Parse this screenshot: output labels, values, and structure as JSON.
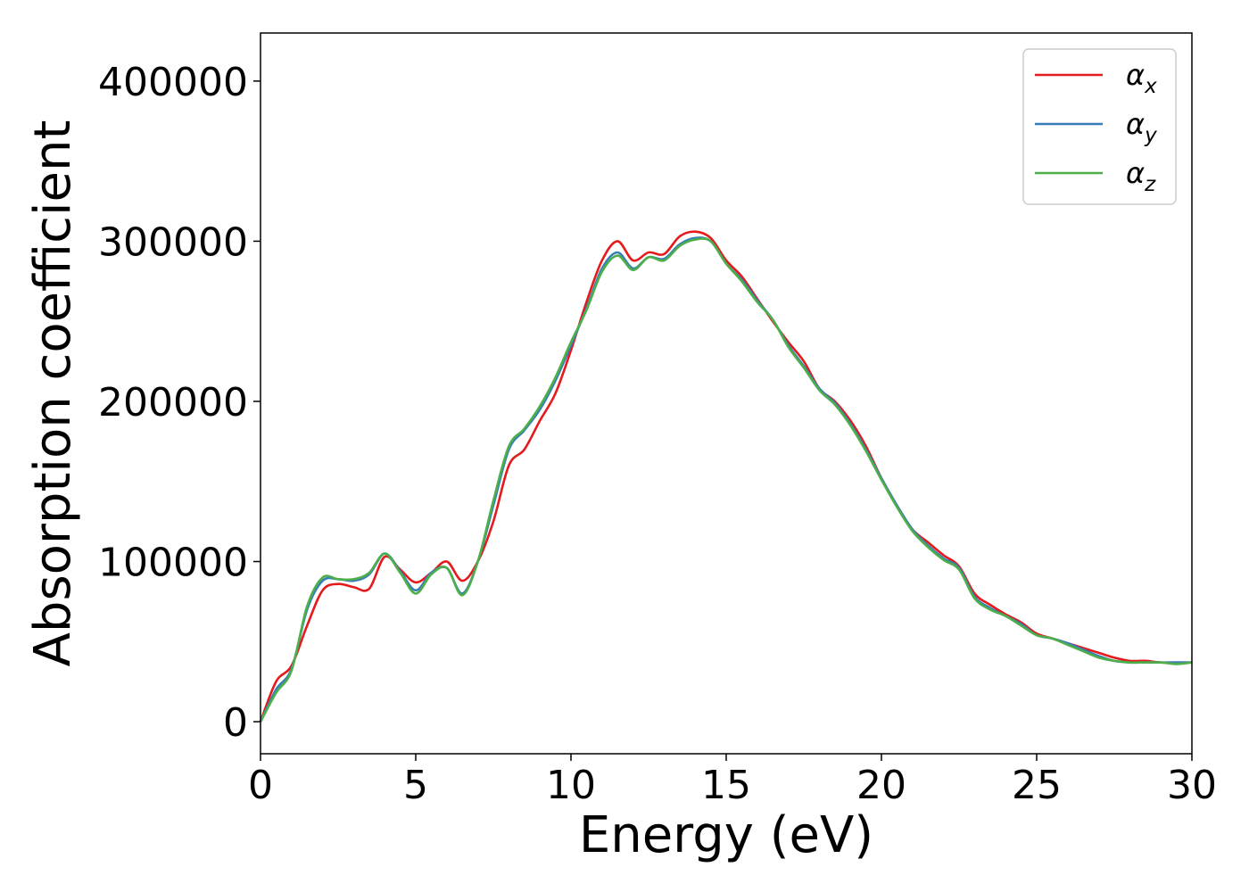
{
  "chart_data": {
    "type": "line",
    "title": "",
    "xlabel": "Energy (eV)",
    "ylabel": "Absorption coefficient",
    "xlim": [
      0,
      30
    ],
    "ylim": [
      -20000,
      430000
    ],
    "xticks": [
      0,
      5,
      10,
      15,
      20,
      25,
      30
    ],
    "yticks": [
      0,
      100000,
      200000,
      300000,
      400000
    ],
    "grid": false,
    "legend_position": "top-right",
    "series": [
      {
        "name": "α",
        "subscript": "x",
        "color": "#e41a1c",
        "x": [
          0,
          0.5,
          1,
          1.5,
          2,
          2.5,
          3,
          3.5,
          4,
          4.5,
          5,
          5.5,
          6,
          6.5,
          7,
          7.5,
          8,
          8.5,
          9,
          9.5,
          10,
          10.5,
          11,
          11.5,
          12,
          12.5,
          13,
          13.5,
          14,
          14.5,
          15,
          15.5,
          16,
          16.5,
          17,
          17.5,
          18,
          18.5,
          19,
          19.5,
          20,
          20.5,
          21,
          21.5,
          22,
          22.5,
          23,
          23.5,
          24,
          24.5,
          25,
          25.5,
          26,
          26.5,
          27,
          27.5,
          28,
          28.5,
          29,
          29.5,
          30
        ],
        "y": [
          0,
          25000,
          35000,
          60000,
          82000,
          86000,
          84000,
          83000,
          103000,
          95000,
          87000,
          93000,
          100000,
          88000,
          100000,
          125000,
          160000,
          170000,
          188000,
          205000,
          232000,
          262000,
          288000,
          300000,
          288000,
          293000,
          292000,
          303000,
          306000,
          302000,
          288000,
          278000,
          264000,
          250000,
          237000,
          225000,
          208000,
          200000,
          188000,
          172000,
          152000,
          135000,
          120000,
          112000,
          104000,
          97000,
          80000,
          73000,
          67000,
          62000,
          55000,
          52000,
          49000,
          46000,
          43000,
          40000,
          38000,
          38000,
          37000,
          37000,
          37000
        ]
      },
      {
        "name": "α",
        "subscript": "y",
        "color": "#377eb8",
        "x": [
          0,
          0.5,
          1,
          1.5,
          2,
          2.5,
          3,
          3.5,
          4,
          4.5,
          5,
          5.5,
          6,
          6.5,
          7,
          7.5,
          8,
          8.5,
          9,
          9.5,
          10,
          10.5,
          11,
          11.5,
          12,
          12.5,
          13,
          13.5,
          14,
          14.5,
          15,
          15.5,
          16,
          16.5,
          17,
          17.5,
          18,
          18.5,
          19,
          19.5,
          20,
          20.5,
          21,
          21.5,
          22,
          22.5,
          23,
          23.5,
          24,
          24.5,
          25,
          25.5,
          26,
          26.5,
          27,
          27.5,
          28,
          28.5,
          29,
          29.5,
          30
        ],
        "y": [
          0,
          20000,
          33000,
          70000,
          88000,
          89000,
          88000,
          92000,
          105000,
          94000,
          82000,
          93000,
          96000,
          80000,
          100000,
          135000,
          170000,
          182000,
          195000,
          213000,
          235000,
          258000,
          283000,
          293000,
          283000,
          290000,
          289000,
          298000,
          302000,
          300000,
          286000,
          276000,
          263000,
          251000,
          235000,
          222000,
          208000,
          199000,
          186000,
          170000,
          152000,
          135000,
          120000,
          110000,
          102000,
          96000,
          78000,
          71000,
          66000,
          61000,
          54000,
          52000,
          49000,
          45000,
          41000,
          38000,
          37000,
          37000,
          37000,
          37000,
          37000
        ]
      },
      {
        "name": "α",
        "subscript": "z",
        "color": "#4daf4a",
        "x": [
          0,
          0.5,
          1,
          1.5,
          2,
          2.5,
          3,
          3.5,
          4,
          4.5,
          5,
          5.5,
          6,
          6.5,
          7,
          7.5,
          8,
          8.5,
          9,
          9.5,
          10,
          10.5,
          11,
          11.5,
          12,
          12.5,
          13,
          13.5,
          14,
          14.5,
          15,
          15.5,
          16,
          16.5,
          17,
          17.5,
          18,
          18.5,
          19,
          19.5,
          20,
          20.5,
          21,
          21.5,
          22,
          22.5,
          23,
          23.5,
          24,
          24.5,
          25,
          25.5,
          26,
          26.5,
          27,
          27.5,
          28,
          28.5,
          29,
          29.5,
          30
        ],
        "y": [
          0,
          18000,
          32000,
          72000,
          90000,
          89000,
          89000,
          93000,
          105000,
          93000,
          80000,
          92000,
          96000,
          79000,
          100000,
          138000,
          172000,
          183000,
          197000,
          215000,
          237000,
          257000,
          281000,
          291000,
          282000,
          290000,
          288000,
          297000,
          301000,
          300000,
          286000,
          275000,
          262000,
          251000,
          234000,
          221000,
          207000,
          198000,
          185000,
          169000,
          151000,
          134000,
          119000,
          109000,
          101000,
          95000,
          77000,
          70000,
          66000,
          60000,
          54000,
          52000,
          48000,
          44000,
          40000,
          38000,
          37000,
          37000,
          37000,
          36000,
          37000
        ]
      }
    ]
  }
}
